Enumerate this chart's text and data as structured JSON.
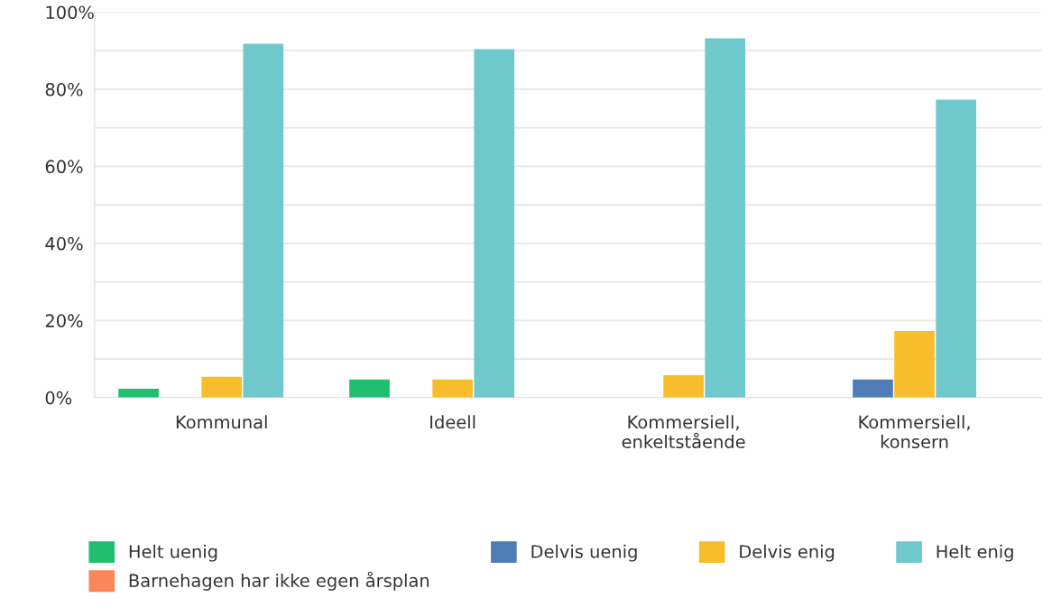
{
  "chart_data": {
    "type": "bar",
    "categories": [
      "Kommunal",
      "Ideell",
      "Kommersiell,\nenkeltstående",
      "Kommersiell,\nkonsern"
    ],
    "series": [
      {
        "name": "Helt uenig",
        "color": "#1fbf6f",
        "values": [
          2.3,
          4.7,
          0,
          0
        ]
      },
      {
        "name": "Delvis uenig",
        "color": "#507cb6",
        "values": [
          0,
          0,
          0,
          4.7
        ]
      },
      {
        "name": "Delvis enig",
        "color": "#f7bd2a",
        "values": [
          5.4,
          4.7,
          5.8,
          17.3
        ]
      },
      {
        "name": "Helt enig",
        "color": "#6fc8cb",
        "values": [
          91.8,
          90.4,
          93.2,
          77.3
        ]
      },
      {
        "name": "Barnehagen har ikke egen årsplan",
        "color": "#f9875a",
        "values": [
          0,
          0,
          0,
          0
        ]
      }
    ],
    "ylim": [
      0,
      100
    ],
    "yticks": [
      {
        "value": 0,
        "label": "0%"
      },
      {
        "value": 10,
        "label": null
      },
      {
        "value": 20,
        "label": "20%"
      },
      {
        "value": 30,
        "label": null
      },
      {
        "value": 40,
        "label": "40%"
      },
      {
        "value": 50,
        "label": null
      },
      {
        "value": 60,
        "label": "60%"
      },
      {
        "value": 70,
        "label": null
      },
      {
        "value": 80,
        "label": "80%"
      },
      {
        "value": 90,
        "label": null
      },
      {
        "value": 100,
        "label": "100%"
      }
    ],
    "grid": "y",
    "legend": "bottom"
  }
}
